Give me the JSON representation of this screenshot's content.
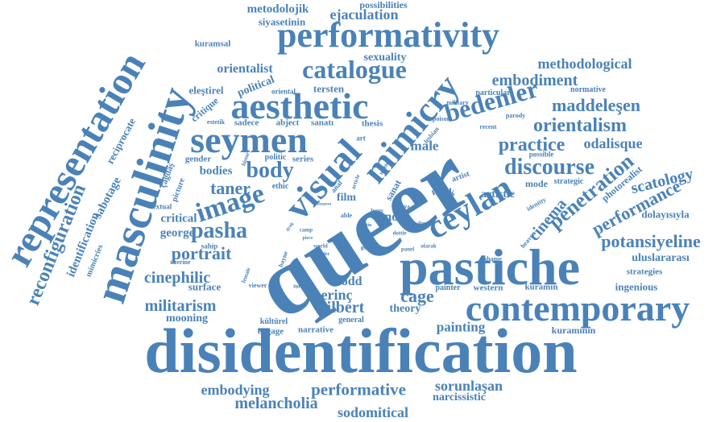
{
  "colors": {
    "word": "#4a82b8",
    "background": "#ffffff"
  },
  "words": {
    "queer": "queer",
    "disidentification": "disidentification",
    "pastiche": "pastiche",
    "contemporary": "contemporary",
    "masculinity": "masculinity",
    "representation": "representation",
    "performativity": "performativity",
    "aesthetic": "aesthetic",
    "seymen": "seymen",
    "visual": "visual",
    "mimicry": "mimicry",
    "ceylan": "ceylan",
    "catalogue": "catalogue",
    "image": "image",
    "body": "body",
    "pasha": "pasha",
    "taner": "taner",
    "bedenler": "bedenler",
    "discourse": "discourse",
    "practice": "practice",
    "orientalism": "orientalism",
    "penetration": "penetration",
    "cinema": "cinema",
    "performance": "performance",
    "potansiyeline": "potansiyeline",
    "embodiment": "embodiment",
    "methodological": "methodological",
    "maddeleşen": "maddeleşen",
    "odalisque": "odalisque",
    "scatology": "scatology",
    "reconfiguration": "reconfiguration",
    "identification": "identification",
    "sabotage": "sabotage",
    "reciprocate": "reciprocate",
    "mimicries": "mimicries",
    "portrait": "portrait",
    "cinephilic": "cinephilic",
    "militarism": "militarism",
    "george": "george",
    "critical": "critical",
    "surface": "surface",
    "mooning": "mooning",
    "gilbert": "gilbert",
    "erinç": "erinç",
    "todd": "todd",
    "cage": "cage",
    "theory": "theory",
    "painting": "painting",
    "embodying": "embodying",
    "performative": "performative",
    "melancholia": "melancholia",
    "sodomitical": "sodomitical",
    "sorunlaşan": "sorunlaşan",
    "narcissistic": "narcissistic",
    "ejaculation": "ejaculation",
    "metodolojik": "metodolojik",
    "possibilities": "possibilities",
    "siyasetinin": "siyasetinin",
    "kuramsal": "kuramsal",
    "orientalist": "orientalist",
    "political": "political",
    "eleştirel": "eleştirel",
    "sexuality": "sexuality",
    "tersten": "tersten",
    "male": "male",
    "artistic": "artistic",
    "work": "work",
    "mode": "mode",
    "note": "note",
    "film": "film",
    "sanat": "sanat",
    "abject": "abject",
    "sanatı": "sanatı",
    "sadece": "sadece",
    "critique": "critique",
    "thesis": "thesis",
    "normative": "normative",
    "particular": "particular",
    "military": "military",
    "parody": "parody",
    "strategic": "strategic",
    "identity": "identity",
    "photorealist": "photorealist",
    "dolayısıyla": "dolayısıyla",
    "uluslararası": "uluslararası",
    "strategies": "strategies",
    "ingenious": "ingenious",
    "kuramın": "kuramın",
    "kuramının": "kuramının",
    "narrative": "narrative",
    "general": "general",
    "engage": "engage",
    "kültürel": "kültürel",
    "bodies": "bodies",
    "gender": "gender",
    "series": "series",
    "politic": "politic",
    "ethic": "ethic",
    "art": "art",
    "artist": "artist",
    "possible": "possible",
    "çağdaş": "çağdaş",
    "picture": "picture",
    "textual": "textual",
    "sahip": "sahip",
    "üzerine": "üzerine",
    "estetik": "estetik",
    "oriental": "oriental",
    "history": "history",
    "female": "female",
    "bayne": "bayne",
    "viewer": "viewer",
    "turkey": "turkey",
    "western": "western",
    "painter": "painter",
    "shame": "shame",
    "heaven": "heaven",
    "genre": "genre",
    "panel": "panel",
    "olarak": "olarak",
    "figure": "figure",
    "dottie": "dottie",
    "world": "world",
    "order": "order",
    "camp": "camp",
    "piece": "piece",
    "able": "able",
    "poison": "poison",
    "recent": "recent",
    "lesbian": "lesbian",
    "matter": "matter",
    "anal": "anal",
    "article": "article",
    "focus": "focus",
    "veya": "veya",
    "metin": "metin",
    "drag": "drag",
    "diaspora": "diaspora"
  }
}
